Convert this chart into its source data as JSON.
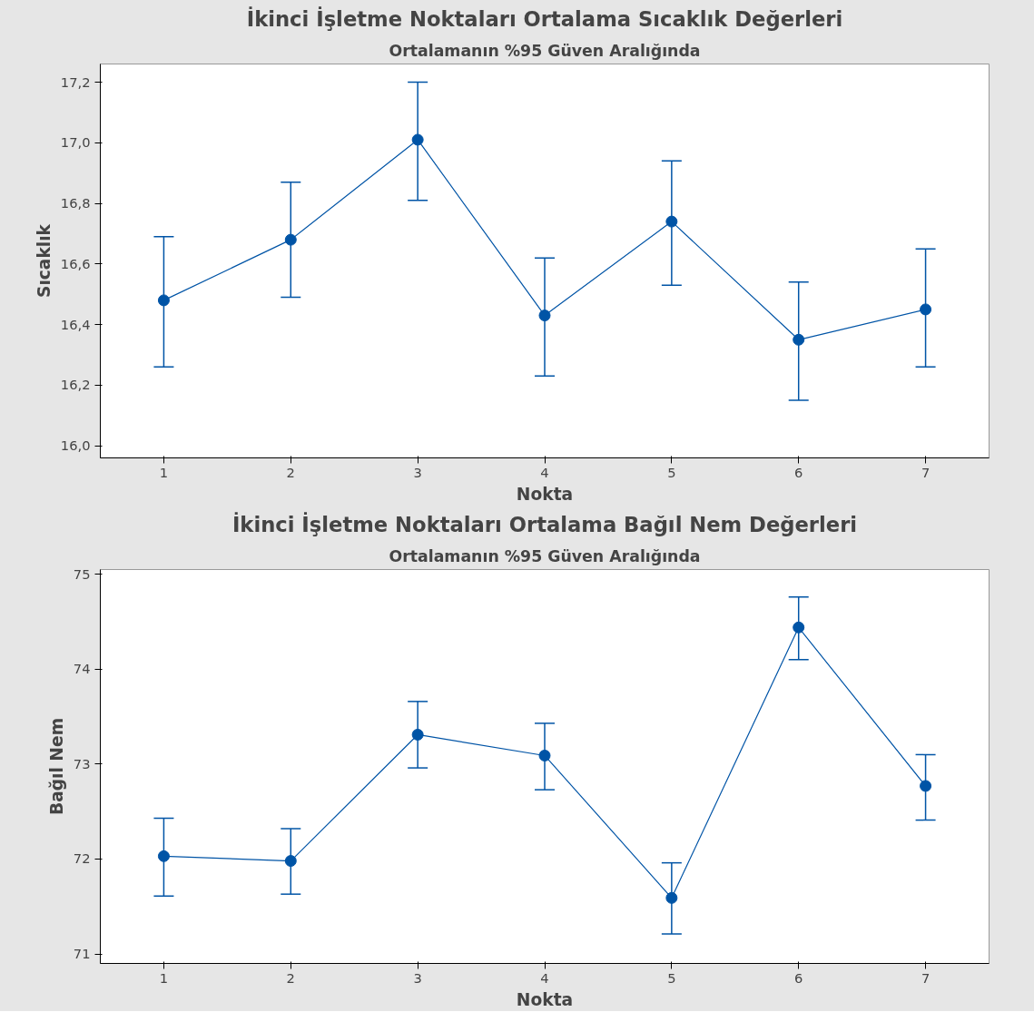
{
  "chart_data": [
    {
      "type": "line",
      "title": "İkinci İşletme Noktaları Ortalama Sıcaklık Değerleri",
      "subtitle": "Ortalamanın %95 Güven Aralığında",
      "xlabel": "Nokta",
      "ylabel": "Sıcaklık",
      "x": [
        1,
        2,
        3,
        4,
        5,
        6,
        7
      ],
      "values": [
        16.48,
        16.68,
        17.01,
        16.43,
        16.74,
        16.35,
        16.45
      ],
      "errors": [
        [
          16.26,
          16.69
        ],
        [
          16.49,
          16.87
        ],
        [
          16.81,
          17.2
        ],
        [
          16.23,
          16.62
        ],
        [
          16.53,
          16.94
        ],
        [
          16.15,
          16.54
        ],
        [
          16.26,
          16.65
        ]
      ],
      "color": "#0054a6",
      "marker": "circle",
      "line_style": "solid",
      "xlim": [
        0.5,
        7.5
      ],
      "xticks": [
        1,
        2,
        3,
        4,
        5,
        6,
        7
      ],
      "ylim": [
        15.96,
        17.26
      ],
      "yticks": [
        {
          "value": 16.0,
          "label": "16,0"
        },
        {
          "value": 16.2,
          "label": "16,2"
        },
        {
          "value": 16.4,
          "label": "16,4"
        },
        {
          "value": 16.6,
          "label": "16,6"
        },
        {
          "value": 16.8,
          "label": "16,8"
        },
        {
          "value": 17.0,
          "label": "17,0"
        },
        {
          "value": 17.2,
          "label": "17,2"
        }
      ]
    },
    {
      "type": "line",
      "title": "İkinci İşletme Noktaları Ortalama Bağıl Nem Değerleri",
      "subtitle": "Ortalamanın %95 Güven Aralığında",
      "xlabel": "Nokta",
      "ylabel": "Bağıl Nem",
      "x": [
        1,
        2,
        3,
        4,
        5,
        6,
        7
      ],
      "values": [
        72.03,
        71.98,
        73.31,
        73.09,
        71.59,
        74.44,
        72.77
      ],
      "errors": [
        [
          71.61,
          72.43
        ],
        [
          71.63,
          72.32
        ],
        [
          72.96,
          73.66
        ],
        [
          72.73,
          73.43
        ],
        [
          71.21,
          71.96
        ],
        [
          74.1,
          74.76
        ],
        [
          72.41,
          73.1
        ]
      ],
      "color": "#0054a6",
      "marker": "circle",
      "line_style": "solid",
      "xlim": [
        0.5,
        7.5
      ],
      "xticks": [
        1,
        2,
        3,
        4,
        5,
        6,
        7
      ],
      "ylim": [
        70.9,
        75.05
      ],
      "yticks": [
        71,
        72,
        73,
        74,
        75
      ]
    }
  ]
}
